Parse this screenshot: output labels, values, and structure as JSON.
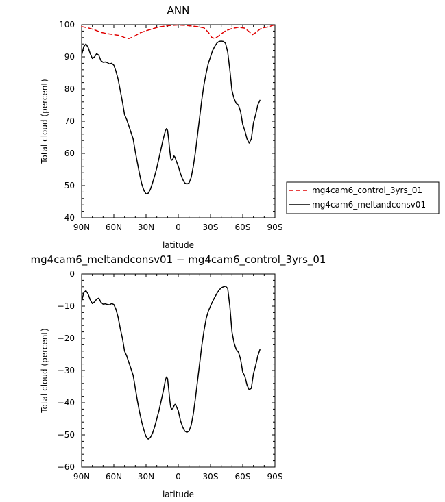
{
  "chart_data": [
    {
      "type": "line",
      "title": "ANN",
      "xlabel": "latitude",
      "ylabel": "Total cloud (percent)",
      "xlim": [
        -90,
        90
      ],
      "ylim": [
        40,
        100
      ],
      "x_ticks": [
        -90,
        -60,
        -30,
        0,
        30,
        60,
        90
      ],
      "x_tick_labels": [
        "90N",
        "60N",
        "30N",
        "0",
        "30S",
        "60S",
        "90S"
      ],
      "y_ticks": [
        40,
        50,
        60,
        70,
        80,
        90,
        100
      ],
      "y_tick_labels": [
        "40",
        "50",
        "60",
        "70",
        "80",
        "90",
        "100"
      ],
      "legend_position": "right",
      "series": [
        {
          "name": "mg4cam6_control_3yrs_01",
          "color": "#e00000",
          "dash": "dashed",
          "points": [
            [
              -90,
              99.4
            ],
            [
              -84,
              99.0
            ],
            [
              -78,
              98.4
            ],
            [
              -72,
              97.6
            ],
            [
              -66,
              97.2
            ],
            [
              -60,
              96.9
            ],
            [
              -54,
              96.6
            ],
            [
              -50,
              96.0
            ],
            [
              -46,
              95.7
            ],
            [
              -42,
              96.2
            ],
            [
              -36,
              97.4
            ],
            [
              -30,
              98.1
            ],
            [
              -24,
              98.7
            ],
            [
              -18,
              99.3
            ],
            [
              -12,
              99.6
            ],
            [
              -6,
              99.8
            ],
            [
              0,
              99.9
            ],
            [
              6,
              99.8
            ],
            [
              12,
              99.6
            ],
            [
              18,
              99.4
            ],
            [
              24,
              99.0
            ],
            [
              28,
              97.6
            ],
            [
              31,
              96.1
            ],
            [
              34,
              95.7
            ],
            [
              38,
              96.6
            ],
            [
              44,
              98.1
            ],
            [
              50,
              98.8
            ],
            [
              56,
              99.2
            ],
            [
              62,
              98.9
            ],
            [
              66,
              97.8
            ],
            [
              69,
              96.9
            ],
            [
              72,
              97.5
            ],
            [
              76,
              98.6
            ],
            [
              80,
              99.1
            ],
            [
              84,
              99.3
            ],
            [
              88,
              99.8
            ],
            [
              90,
              99.9
            ]
          ]
        },
        {
          "name": "mg4cam6_meltandconsv01",
          "color": "#000000",
          "dash": "solid",
          "points": [
            [
              -90,
              90.5
            ],
            [
              -88,
              93.2
            ],
            [
              -86,
              94.0
            ],
            [
              -84,
              93.0
            ],
            [
              -82,
              91.0
            ],
            [
              -80,
              89.5
            ],
            [
              -78,
              90.0
            ],
            [
              -76,
              91.0
            ],
            [
              -74,
              90.5
            ],
            [
              -72,
              88.8
            ],
            [
              -70,
              88.3
            ],
            [
              -68,
              88.4
            ],
            [
              -66,
              88.2
            ],
            [
              -64,
              87.8
            ],
            [
              -62,
              88.0
            ],
            [
              -60,
              87.4
            ],
            [
              -58,
              85.5
            ],
            [
              -56,
              83.0
            ],
            [
              -54,
              79.5
            ],
            [
              -52,
              76.0
            ],
            [
              -50,
              72.0
            ],
            [
              -48,
              70.5
            ],
            [
              -46,
              68.5
            ],
            [
              -44,
              66.5
            ],
            [
              -42,
              64.5
            ],
            [
              -40,
              60.5
            ],
            [
              -38,
              57.0
            ],
            [
              -36,
              53.5
            ],
            [
              -34,
              50.5
            ],
            [
              -32,
              48.5
            ],
            [
              -30,
              47.4
            ],
            [
              -28,
              47.6
            ],
            [
              -26,
              48.8
            ],
            [
              -24,
              50.8
            ],
            [
              -22,
              53.0
            ],
            [
              -20,
              55.5
            ],
            [
              -18,
              58.5
            ],
            [
              -16,
              61.5
            ],
            [
              -14,
              64.5
            ],
            [
              -12,
              67.0
            ],
            [
              -11,
              67.7
            ],
            [
              -10,
              67.2
            ],
            [
              -9,
              64.5
            ],
            [
              -8,
              61.0
            ],
            [
              -7,
              58.4
            ],
            [
              -6,
              57.9
            ],
            [
              -5,
              58.3
            ],
            [
              -4,
              59.2
            ],
            [
              -3,
              58.8
            ],
            [
              -2,
              57.8
            ],
            [
              0,
              56.0
            ],
            [
              2,
              53.8
            ],
            [
              4,
              52.0
            ],
            [
              6,
              50.8
            ],
            [
              8,
              50.5
            ],
            [
              10,
              50.8
            ],
            [
              12,
              52.5
            ],
            [
              14,
              56.0
            ],
            [
              16,
              60.5
            ],
            [
              18,
              66.0
            ],
            [
              20,
              71.5
            ],
            [
              22,
              77.0
            ],
            [
              24,
              81.5
            ],
            [
              26,
              85.0
            ],
            [
              28,
              88.0
            ],
            [
              30,
              90.0
            ],
            [
              32,
              92.0
            ],
            [
              34,
              93.3
            ],
            [
              36,
              94.3
            ],
            [
              38,
              94.8
            ],
            [
              40,
              94.9
            ],
            [
              42,
              94.8
            ],
            [
              44,
              94.2
            ],
            [
              46,
              91.5
            ],
            [
              48,
              86.0
            ],
            [
              50,
              79.5
            ],
            [
              52,
              77.0
            ],
            [
              54,
              75.5
            ],
            [
              56,
              75.0
            ],
            [
              58,
              73.0
            ],
            [
              60,
              69.0
            ],
            [
              62,
              67.0
            ],
            [
              64,
              64.5
            ],
            [
              66,
              63.2
            ],
            [
              68,
              64.5
            ],
            [
              70,
              69.5
            ],
            [
              72,
              72.0
            ],
            [
              74,
              75.0
            ],
            [
              76,
              76.5
            ]
          ]
        }
      ]
    },
    {
      "type": "line",
      "title": "mg4cam6_meltandconsv01 − mg4cam6_control_3yrs_01",
      "xlabel": "latitude",
      "ylabel": "Total cloud (percent)",
      "xlim": [
        -90,
        90
      ],
      "ylim": [
        -60,
        0
      ],
      "x_ticks": [
        -90,
        -60,
        -30,
        0,
        30,
        60,
        90
      ],
      "x_tick_labels": [
        "90N",
        "60N",
        "30N",
        "0",
        "30S",
        "60S",
        "90S"
      ],
      "y_ticks": [
        -60,
        -50,
        -40,
        -30,
        -20,
        -10,
        0
      ],
      "y_tick_labels": [
        "−60",
        "−50",
        "−40",
        "−30",
        "−20",
        "−10",
        "0"
      ],
      "series": [
        {
          "color": "#000000",
          "dash": "solid",
          "points": [
            [
              -90,
              -8.5
            ],
            [
              -88,
              -5.8
            ],
            [
              -86,
              -5.2
            ],
            [
              -84,
              -6.2
            ],
            [
              -82,
              -8.0
            ],
            [
              -80,
              -9.2
            ],
            [
              -78,
              -8.7
            ],
            [
              -76,
              -7.8
            ],
            [
              -74,
              -7.5
            ],
            [
              -72,
              -8.8
            ],
            [
              -70,
              -9.4
            ],
            [
              -68,
              -9.3
            ],
            [
              -66,
              -9.5
            ],
            [
              -64,
              -9.6
            ],
            [
              -62,
              -9.2
            ],
            [
              -60,
              -9.5
            ],
            [
              -58,
              -11.0
            ],
            [
              -56,
              -13.5
            ],
            [
              -54,
              -17.0
            ],
            [
              -52,
              -20.0
            ],
            [
              -50,
              -24.0
            ],
            [
              -48,
              -25.5
            ],
            [
              -46,
              -27.5
            ],
            [
              -44,
              -29.5
            ],
            [
              -42,
              -31.5
            ],
            [
              -40,
              -35.5
            ],
            [
              -38,
              -39.5
            ],
            [
              -36,
              -43.0
            ],
            [
              -34,
              -46.0
            ],
            [
              -32,
              -48.5
            ],
            [
              -30,
              -50.5
            ],
            [
              -28,
              -51.3
            ],
            [
              -26,
              -50.8
            ],
            [
              -24,
              -49.5
            ],
            [
              -22,
              -47.5
            ],
            [
              -20,
              -45.0
            ],
            [
              -18,
              -42.5
            ],
            [
              -16,
              -39.5
            ],
            [
              -14,
              -36.5
            ],
            [
              -12,
              -33.0
            ],
            [
              -11,
              -32.0
            ],
            [
              -10,
              -32.5
            ],
            [
              -9,
              -35.5
            ],
            [
              -8,
              -39.0
            ],
            [
              -7,
              -41.5
            ],
            [
              -6,
              -42.0
            ],
            [
              -5,
              -41.8
            ],
            [
              -4,
              -41.0
            ],
            [
              -3,
              -40.5
            ],
            [
              -2,
              -41.0
            ],
            [
              0,
              -42.5
            ],
            [
              2,
              -45.5
            ],
            [
              4,
              -47.5
            ],
            [
              6,
              -48.8
            ],
            [
              8,
              -49.2
            ],
            [
              10,
              -48.8
            ],
            [
              12,
              -47.0
            ],
            [
              14,
              -43.5
            ],
            [
              16,
              -38.5
            ],
            [
              18,
              -33.0
            ],
            [
              20,
              -27.5
            ],
            [
              22,
              -22.0
            ],
            [
              24,
              -17.5
            ],
            [
              26,
              -13.8
            ],
            [
              28,
              -11.5
            ],
            [
              30,
              -10.0
            ],
            [
              32,
              -8.5
            ],
            [
              34,
              -7.2
            ],
            [
              36,
              -6.0
            ],
            [
              38,
              -5.0
            ],
            [
              40,
              -4.3
            ],
            [
              42,
              -4.0
            ],
            [
              44,
              -3.8
            ],
            [
              46,
              -4.5
            ],
            [
              48,
              -10.0
            ],
            [
              50,
              -18.0
            ],
            [
              52,
              -21.5
            ],
            [
              54,
              -23.5
            ],
            [
              56,
              -24.3
            ],
            [
              58,
              -26.5
            ],
            [
              60,
              -30.5
            ],
            [
              62,
              -31.8
            ],
            [
              64,
              -34.5
            ],
            [
              66,
              -36.0
            ],
            [
              68,
              -35.5
            ],
            [
              70,
              -31.0
            ],
            [
              72,
              -28.5
            ],
            [
              74,
              -25.5
            ],
            [
              76,
              -23.5
            ]
          ]
        }
      ]
    }
  ]
}
